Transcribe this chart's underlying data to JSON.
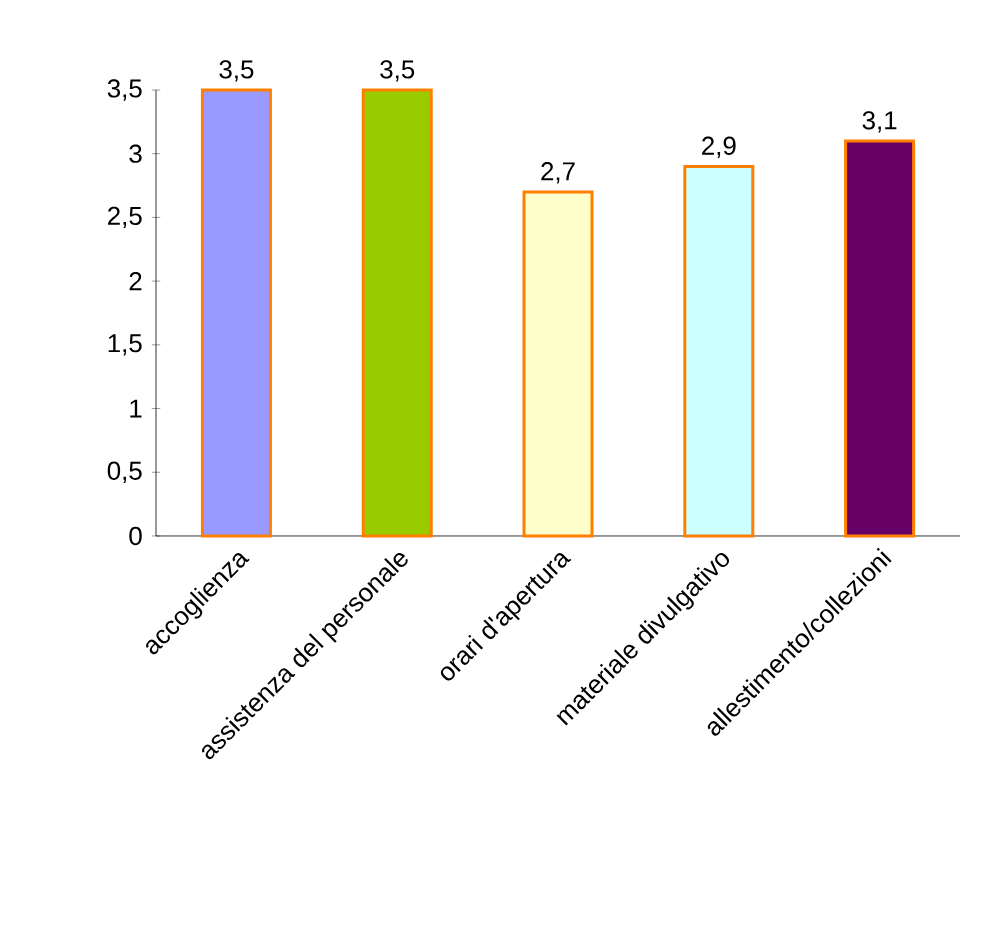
{
  "chart_data": {
    "type": "bar",
    "categories": [
      "accoglienza",
      "assistenza del personale",
      "orari d'apertura",
      "materiale divulgativo",
      "allestimento/collezioni"
    ],
    "values": [
      3.5,
      3.5,
      2.7,
      2.9,
      3.1
    ],
    "colors": [
      "#9999ff",
      "#99cc00",
      "#ffffcc",
      "#ccffff",
      "#660066"
    ],
    "value_labels": [
      "3,5",
      "3,5",
      "2,7",
      "2,9",
      "3,1"
    ],
    "ylim": [
      0,
      3.5
    ],
    "yticks": [
      {
        "value": 0,
        "label": "0"
      },
      {
        "value": 0.5,
        "label": "0,5"
      },
      {
        "value": 1,
        "label": "1"
      },
      {
        "value": 1.5,
        "label": "1,5"
      },
      {
        "value": 2,
        "label": "2"
      },
      {
        "value": 2.5,
        "label": "2,5"
      },
      {
        "value": 3,
        "label": "3"
      },
      {
        "value": 3.5,
        "label": "3,5"
      }
    ],
    "grid": false
  }
}
